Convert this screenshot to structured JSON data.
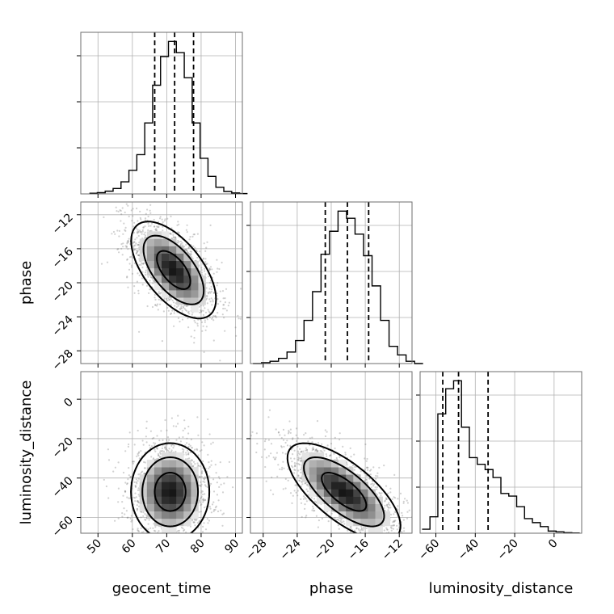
{
  "chart_data": {
    "type": "corner",
    "grid": true,
    "parameters": [
      {
        "name": "geocent_time",
        "label": "geocent_time",
        "range": [
          45,
          92
        ],
        "ticks": [
          50,
          60,
          70,
          80,
          90
        ],
        "quantiles": [
          66.5,
          72.3,
          77.8
        ]
      },
      {
        "name": "phase",
        "label": "phase",
        "range": [
          -29.5,
          -10.5
        ],
        "ticks": [
          -28,
          -24,
          -20,
          -16,
          -12
        ],
        "tick_labels": [
          "−28",
          "−24",
          "−20",
          "−16",
          "−12"
        ],
        "quantiles": [
          -20.7,
          -18.1,
          -15.6
        ]
      },
      {
        "name": "luminosity_distance",
        "label": "luminosity_distance",
        "range": [
          -68,
          14
        ],
        "ticks": [
          -60,
          -40,
          -20,
          0
        ],
        "tick_labels": [
          "−60",
          "−40",
          "−20",
          "0"
        ],
        "quantiles": [
          -56.5,
          -48.5,
          -33.5
        ]
      }
    ],
    "histograms": [
      {
        "param": "geocent_time",
        "bins": [
          47.5,
          49.8,
          52.1,
          54.4,
          56.7,
          59,
          61.3,
          63.6,
          65.9,
          68.2,
          70.5,
          72.8,
          75.1,
          77.4,
          79.7,
          82,
          84.3,
          86.6,
          88.9,
          91.2
        ],
        "counts": [
          2,
          4,
          9,
          18,
          40,
          78,
          130,
          235,
          360,
          455,
          505,
          468,
          385,
          235,
          118,
          58,
          22,
          8,
          3,
          1
        ]
      },
      {
        "param": "phase",
        "bins": [
          -29.2,
          -28.2,
          -27.2,
          -26.2,
          -25.2,
          -24.2,
          -23.2,
          -22.2,
          -21.2,
          -20.2,
          -19.2,
          -18.2,
          -17.2,
          -16.2,
          -15.2,
          -14.2,
          -13.2,
          -12.2,
          -11.2,
          -10.2
        ],
        "counts": [
          0,
          3,
          8,
          18,
          40,
          80,
          150,
          250,
          380,
          460,
          530,
          505,
          450,
          375,
          270,
          150,
          60,
          30,
          8,
          0
        ]
      },
      {
        "param": "luminosity_distance",
        "bins": [
          -67,
          -63,
          -59,
          -55,
          -51,
          -47,
          -43,
          -39,
          -35,
          -31,
          -27,
          -23,
          -19,
          -15,
          -11,
          -7,
          -3,
          1,
          5,
          9,
          13
        ],
        "counts": [
          15,
          62,
          450,
          545,
          575,
          400,
          285,
          260,
          240,
          210,
          150,
          140,
          100,
          55,
          40,
          25,
          8,
          5,
          2,
          1
        ]
      }
    ],
    "joint_plots": [
      {
        "x": "geocent_time",
        "y": "phase",
        "mean": [
          72,
          -18.5
        ],
        "sd": [
          6.5,
          3.0
        ],
        "rho": -0.6
      },
      {
        "x": "geocent_time",
        "y": "luminosity_distance",
        "mean": [
          71,
          -47
        ],
        "sd": [
          6,
          13
        ],
        "rho": 0.0
      },
      {
        "x": "phase",
        "y": "luminosity_distance",
        "mean": [
          -18.5,
          -47
        ],
        "sd": [
          3.5,
          13
        ],
        "rho": -0.7
      }
    ]
  }
}
